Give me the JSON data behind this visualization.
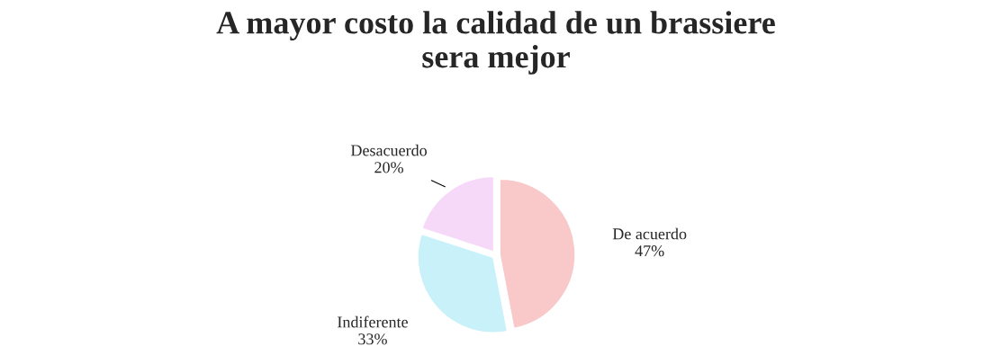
{
  "chart_data": {
    "type": "pie",
    "title": "A mayor costo la calidad de un brassiere\nsera mejor",
    "categories": [
      "De acuerdo",
      "Indiferente",
      "Desacuerdo"
    ],
    "values": [
      47,
      33,
      20
    ],
    "colors": [
      "#f9c8c8",
      "#c8f1f9",
      "#f6d8f9"
    ],
    "value_labels": [
      "47%",
      "33%",
      "20%"
    ]
  }
}
